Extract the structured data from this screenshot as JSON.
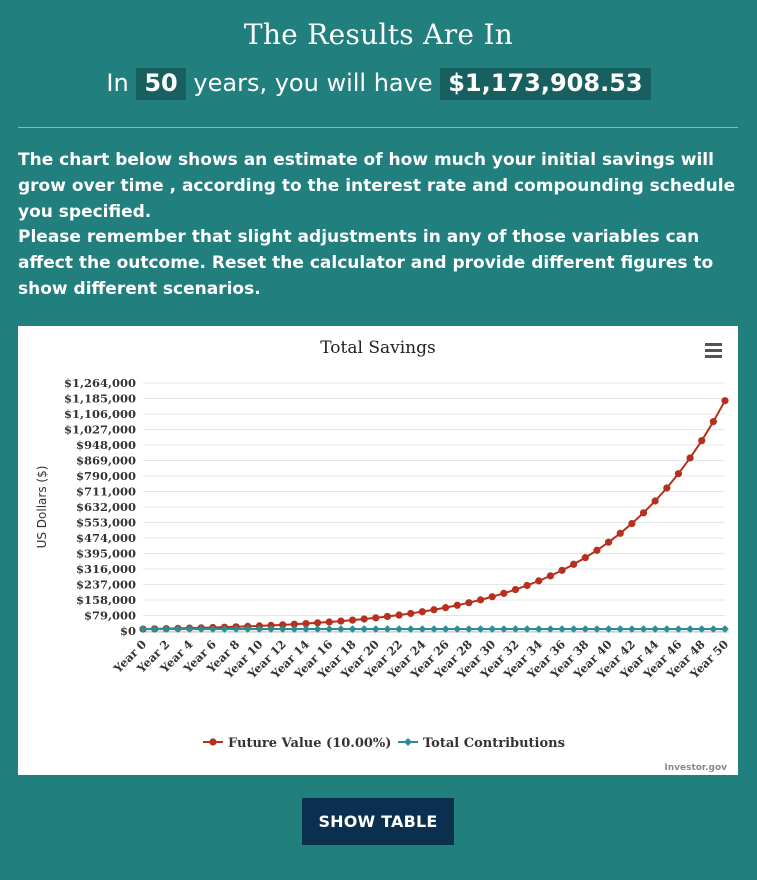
{
  "header": {
    "title": "The Results Are In",
    "result_prefix": "In",
    "years": "50",
    "result_middle": "years, you will have",
    "amount": "$1,173,908.53"
  },
  "paragraphs": {
    "p1": "The chart below shows an estimate of how much your initial savings will grow over time , according to the interest rate and compounding schedule you specified.",
    "p2": "Please remember that slight adjustments in any of those variables can affect the outcome. Reset the calculator and provide different figures to show different scenarios."
  },
  "buttons": {
    "show_table": "SHOW TABLE"
  },
  "colors": {
    "page_bg": "#217f7e",
    "chip_bg": "#17605f",
    "button_bg": "#0b2f4f",
    "future_value": "#b5301e",
    "contributions": "#2a8f94"
  },
  "chart_menu_icon": "hamburger-menu-icon",
  "chart_data": {
    "type": "line",
    "title": "Total Savings",
    "ylabel": "US Dollars ($)",
    "credit": "Investor.gov",
    "ylim": [
      0,
      1264000
    ],
    "y_ticks": [
      0,
      79000,
      158000,
      237000,
      316000,
      395000,
      474000,
      553000,
      632000,
      711000,
      790000,
      869000,
      948000,
      1027000,
      1106000,
      1185000,
      1264000
    ],
    "y_tick_labels": [
      "$0",
      "$79,000",
      "$158,000",
      "$237,000",
      "$316,000",
      "$395,000",
      "$474,000",
      "$553,000",
      "$632,000",
      "$711,000",
      "$790,000",
      "$869,000",
      "$948,000",
      "$1,027,000",
      "$1,106,000",
      "$1,185,000",
      "$1,264,000"
    ],
    "x_labels": [
      "Year 0",
      "Year 2",
      "Year 4",
      "Year 6",
      "Year 8",
      "Year 10",
      "Year 12",
      "Year 14",
      "Year 16",
      "Year 18",
      "Year 20",
      "Year 22",
      "Year 24",
      "Year 26",
      "Year 28",
      "Year 30",
      "Year 32",
      "Year 34",
      "Year 36",
      "Year 38",
      "Year 40",
      "Year 42",
      "Year 44",
      "Year 46",
      "Year 48",
      "Year 50"
    ],
    "x": [
      0,
      1,
      2,
      3,
      4,
      5,
      6,
      7,
      8,
      9,
      10,
      11,
      12,
      13,
      14,
      15,
      16,
      17,
      18,
      19,
      20,
      21,
      22,
      23,
      24,
      25,
      26,
      27,
      28,
      29,
      30,
      31,
      32,
      33,
      34,
      35,
      36,
      37,
      38,
      39,
      40,
      41,
      42,
      43,
      44,
      45,
      46,
      47,
      48,
      49,
      50
    ],
    "series": [
      {
        "name": "Future Value (10.00%)",
        "color": "#b5301e",
        "marker": "circle",
        "values": [
          10000,
          11000,
          12100,
          13310,
          14641,
          16105,
          17716,
          19487,
          21436,
          23579,
          25937,
          28531,
          31384,
          34523,
          37975,
          41772,
          45950,
          50545,
          55599,
          61159,
          67275,
          74002,
          81403,
          89543,
          98497,
          108347,
          119182,
          131100,
          144210,
          158631,
          174494,
          191943,
          211138,
          232252,
          255477,
          281024,
          309127,
          340039,
          374043,
          411448,
          452593,
          497852,
          547637,
          602401,
          662641,
          728905,
          801795,
          881975,
          970172,
          1067190,
          1173909
        ]
      },
      {
        "name": "Total Contributions",
        "color": "#2a8f94",
        "marker": "diamond",
        "values": [
          10000,
          10000,
          10000,
          10000,
          10000,
          10000,
          10000,
          10000,
          10000,
          10000,
          10000,
          10000,
          10000,
          10000,
          10000,
          10000,
          10000,
          10000,
          10000,
          10000,
          10000,
          10000,
          10000,
          10000,
          10000,
          10000,
          10000,
          10000,
          10000,
          10000,
          10000,
          10000,
          10000,
          10000,
          10000,
          10000,
          10000,
          10000,
          10000,
          10000,
          10000,
          10000,
          10000,
          10000,
          10000,
          10000,
          10000,
          10000,
          10000,
          10000,
          10000
        ]
      }
    ],
    "grid": true,
    "legend": "bottom-center"
  }
}
